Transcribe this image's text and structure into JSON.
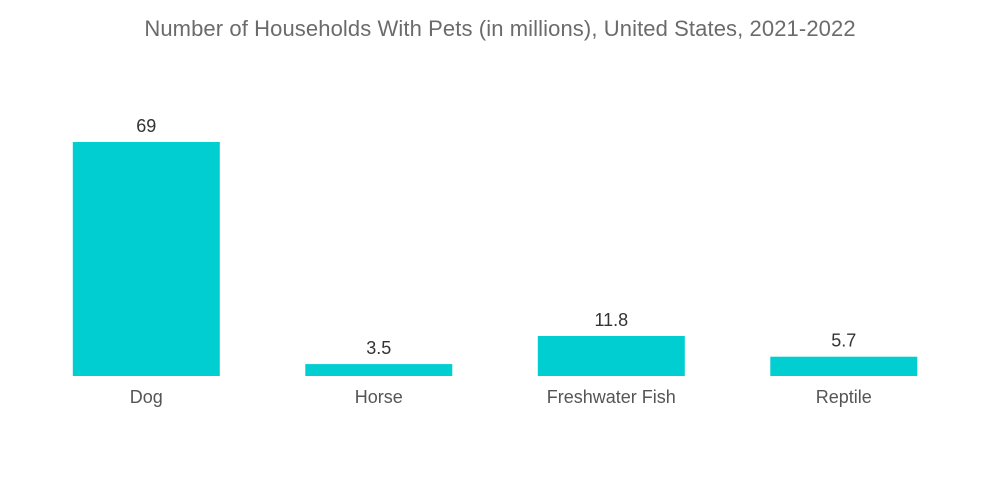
{
  "chart_data": {
    "type": "bar",
    "title": "Number of Households With Pets (in millions), United States, 2021-2022",
    "categories": [
      "Dog",
      "Horse",
      "Freshwater Fish",
      "Reptile"
    ],
    "values": [
      69,
      3.5,
      11.8,
      5.7
    ],
    "value_labels": [
      "69",
      "3.5",
      "11.8",
      "5.7"
    ],
    "xlabel": "",
    "ylabel": "",
    "ylim": [
      0,
      69
    ],
    "grid": false,
    "legend": "none",
    "bar_color": "#00CED1"
  }
}
